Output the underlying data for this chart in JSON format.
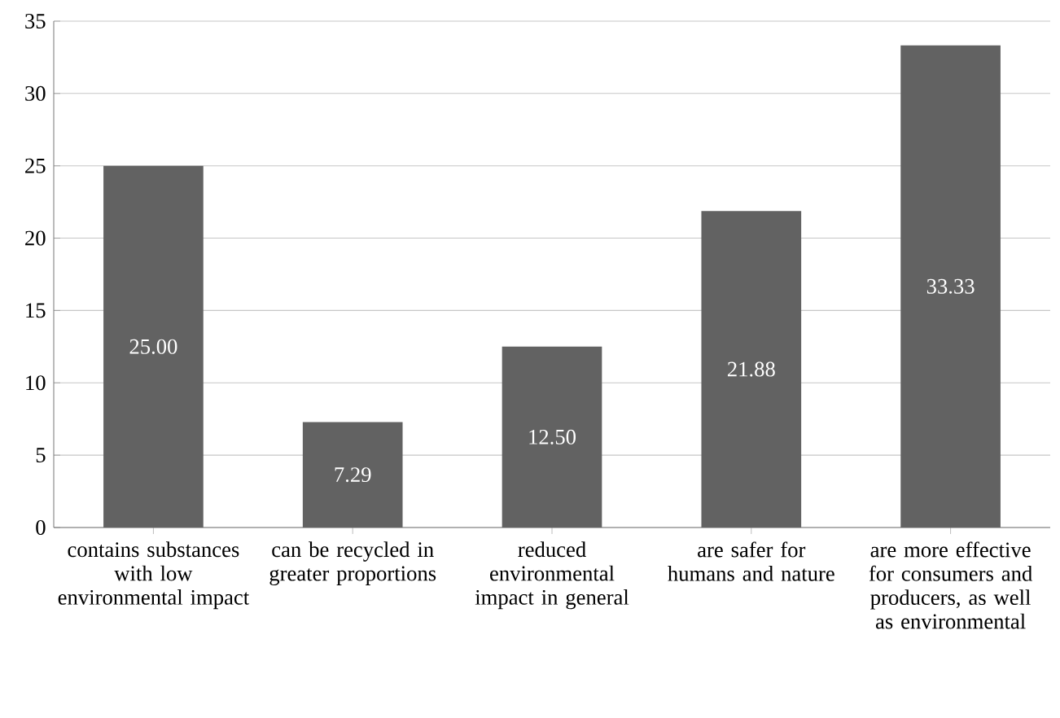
{
  "chart_data": {
    "type": "bar",
    "categories": [
      "contains substances with low environmental impact",
      "can be recycled in greater proportions",
      "reduced environmental impact in general",
      "are safer for humans and nature",
      "are more effective for consumers and producers, as well as environmental"
    ],
    "values": [
      25.0,
      7.29,
      12.5,
      21.88,
      33.33
    ],
    "value_labels": [
      "25.00",
      "7.29",
      "12.50",
      "21.88",
      "33.33"
    ],
    "color": "#626262",
    "ylim": [
      0,
      35
    ],
    "yticks": [
      0,
      5,
      10,
      15,
      20,
      25,
      30,
      35
    ],
    "grid": "y"
  }
}
